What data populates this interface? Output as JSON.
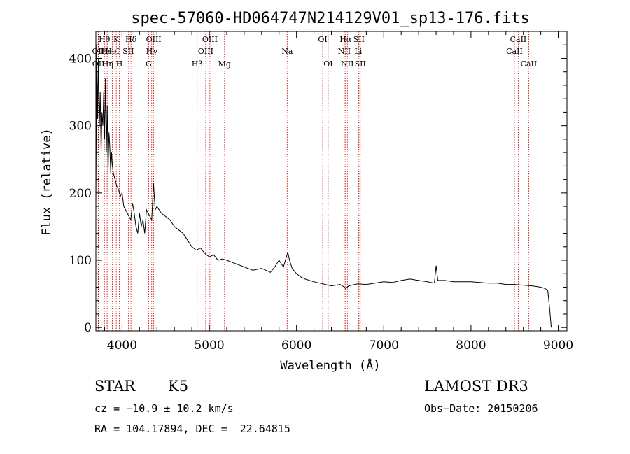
{
  "chart_data": {
    "type": "line",
    "title": "spec-57060-HD064747N214129V01_sp13-176.fits",
    "xlabel": "Wavelength (Å)",
    "ylabel": "Flux (relative)",
    "xlim": [
      3700,
      9100
    ],
    "ylim": [
      -5,
      440
    ],
    "xticks": [
      4000,
      5000,
      6000,
      7000,
      8000,
      9000
    ],
    "yticks": [
      0,
      100,
      200,
      300,
      400
    ],
    "series": [
      {
        "name": "spectrum",
        "x": [
          3700,
          3710,
          3720,
          3730,
          3740,
          3750,
          3760,
          3770,
          3780,
          3790,
          3800,
          3810,
          3820,
          3830,
          3840,
          3850,
          3860,
          3870,
          3880,
          3890,
          3900,
          3920,
          3940,
          3960,
          3980,
          4000,
          4020,
          4040,
          4060,
          4080,
          4100,
          4120,
          4140,
          4160,
          4180,
          4200,
          4220,
          4240,
          4260,
          4280,
          4300,
          4320,
          4340,
          4360,
          4380,
          4400,
          4450,
          4500,
          4550,
          4600,
          4650,
          4700,
          4750,
          4800,
          4850,
          4900,
          4950,
          5000,
          5050,
          5100,
          5150,
          5200,
          5300,
          5400,
          5500,
          5600,
          5700,
          5750,
          5800,
          5850,
          5900,
          5920,
          5950,
          6000,
          6050,
          6100,
          6200,
          6300,
          6400,
          6500,
          6550,
          6563,
          6600,
          6700,
          6800,
          6900,
          7000,
          7100,
          7200,
          7300,
          7400,
          7500,
          7580,
          7600,
          7620,
          7700,
          7800,
          7900,
          8000,
          8100,
          8200,
          8300,
          8400,
          8500,
          8600,
          8700,
          8800,
          8850,
          8880,
          8900,
          8920
        ],
        "y": [
          180,
          420,
          310,
          400,
          300,
          350,
          260,
          320,
          300,
          350,
          280,
          370,
          260,
          330,
          230,
          290,
          270,
          230,
          260,
          240,
          230,
          220,
          210,
          205,
          195,
          200,
          180,
          175,
          170,
          165,
          160,
          185,
          170,
          150,
          140,
          170,
          150,
          160,
          140,
          175,
          170,
          165,
          160,
          215,
          175,
          180,
          170,
          165,
          160,
          150,
          145,
          140,
          130,
          120,
          115,
          118,
          110,
          105,
          108,
          100,
          102,
          100,
          95,
          90,
          85,
          88,
          82,
          90,
          100,
          90,
          112,
          100,
          88,
          80,
          75,
          72,
          68,
          65,
          62,
          64,
          60,
          58,
          62,
          65,
          64,
          66,
          68,
          67,
          70,
          72,
          70,
          68,
          66,
          92,
          70,
          70,
          68,
          68,
          68,
          67,
          66,
          66,
          64,
          64,
          63,
          62,
          60,
          58,
          55,
          30,
          0
        ]
      }
    ],
    "lines": [
      {
        "label": "Hθ",
        "wave": 3798,
        "row": 1
      },
      {
        "label": "OII",
        "wave": 3727,
        "row": 2
      },
      {
        "label": "OII",
        "wave": 3729,
        "row": 3
      },
      {
        "label": "He",
        "wave": 3820,
        "row": 2
      },
      {
        "label": "Hη",
        "wave": 3835,
        "row": 3
      },
      {
        "label": "K",
        "wave": 3934,
        "row": 1
      },
      {
        "label": "HeI",
        "wave": 3889,
        "row": 2
      },
      {
        "label": "H",
        "wave": 3969,
        "row": 3
      },
      {
        "label": "SII",
        "wave": 4072,
        "row": 2
      },
      {
        "label": "Hδ",
        "wave": 4102,
        "row": 1
      },
      {
        "label": "OIII",
        "wave": 4363,
        "row": 1
      },
      {
        "label": "Hγ",
        "wave": 4340,
        "row": 2
      },
      {
        "label": "G",
        "wave": 4305,
        "row": 3
      },
      {
        "label": "Hβ",
        "wave": 4861,
        "row": 3
      },
      {
        "label": "OIII",
        "wave": 5007,
        "row": 1
      },
      {
        "label": "OIII",
        "wave": 4959,
        "row": 2
      },
      {
        "label": "Mg",
        "wave": 5175,
        "row": 3
      },
      {
        "label": "Na",
        "wave": 5893,
        "row": 2
      },
      {
        "label": "OI",
        "wave": 6300,
        "row": 1
      },
      {
        "label": "OI",
        "wave": 6363,
        "row": 3
      },
      {
        "label": "Hα",
        "wave": 6563,
        "row": 1
      },
      {
        "label": "NII",
        "wave": 6548,
        "row": 2
      },
      {
        "label": "NII",
        "wave": 6583,
        "row": 3
      },
      {
        "label": "SII",
        "wave": 6716,
        "row": 1
      },
      {
        "label": "Li",
        "wave": 6708,
        "row": 2
      },
      {
        "label": "SII",
        "wave": 6731,
        "row": 3
      },
      {
        "label": "CaII",
        "wave": 8542,
        "row": 1
      },
      {
        "label": "CaII",
        "wave": 8498,
        "row": 2
      },
      {
        "label": "CaII",
        "wave": 8662,
        "row": 3
      }
    ],
    "colors": {
      "spectrum": "#000000",
      "lines": "#cc0000",
      "axes": "#000000"
    }
  },
  "info": {
    "class": "STAR",
    "subclass": "K5",
    "survey": "LAMOST DR3",
    "cz": "cz = −10.9 ± 10.2 km/s",
    "obs_date": "Obs−Date: 20150206",
    "coords": "RA = 104.17894, DEC =  22.64815"
  }
}
